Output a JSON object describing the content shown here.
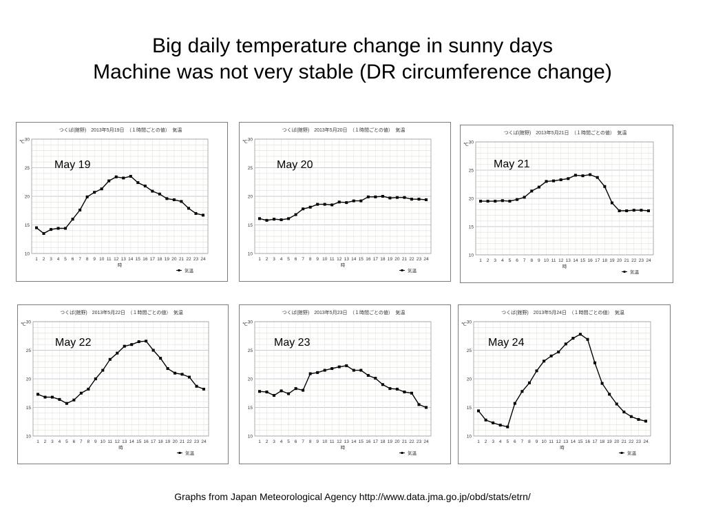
{
  "slide": {
    "title_line1": "Big daily temperature change in sunny days",
    "title_line2": "Machine was not very stable (DR circumference change)",
    "credits": "Graphs  from Japan Meteorological Agency   http://www.data.jma.go.jp/obd/stats/etrn/"
  },
  "chart_data": [
    {
      "type": "line",
      "header": "つくば(館野)　2013年5月19日　（１時間ごとの値）　気温",
      "date_label": "May 19",
      "y_unit": "℃",
      "xlabel": "時",
      "legend": "気温",
      "legend_position": "bottom-right",
      "grid": true,
      "ylim": [
        10,
        30
      ],
      "yticks": [
        10,
        15,
        20,
        25,
        30
      ],
      "x": [
        1,
        2,
        3,
        4,
        5,
        6,
        7,
        8,
        9,
        10,
        11,
        12,
        13,
        14,
        15,
        16,
        17,
        18,
        19,
        20,
        21,
        22,
        23,
        24
      ],
      "values": [
        14.5,
        13.5,
        14.2,
        14.4,
        14.4,
        16.0,
        17.6,
        19.9,
        20.7,
        21.3,
        22.7,
        23.4,
        23.2,
        23.5,
        22.4,
        21.8,
        20.9,
        20.4,
        19.6,
        19.4,
        19.1,
        17.9,
        17.0,
        16.7
      ],
      "color": "#000000"
    },
    {
      "type": "line",
      "header": "つくば(館野)　2013年5月20日　（１時間ごとの値）　気温",
      "date_label": "May 20",
      "y_unit": "℃",
      "xlabel": "時",
      "legend": "気温",
      "legend_position": "bottom-right",
      "grid": true,
      "ylim": [
        10,
        30
      ],
      "yticks": [
        10,
        15,
        20,
        25,
        30
      ],
      "x": [
        1,
        2,
        3,
        4,
        5,
        6,
        7,
        8,
        9,
        10,
        11,
        12,
        13,
        14,
        15,
        16,
        17,
        18,
        19,
        20,
        21,
        22,
        23,
        24
      ],
      "values": [
        16.1,
        15.8,
        16.0,
        15.9,
        16.1,
        16.8,
        17.8,
        18.1,
        18.6,
        18.6,
        18.5,
        19.0,
        18.9,
        19.2,
        19.2,
        19.9,
        19.9,
        20.0,
        19.7,
        19.8,
        19.8,
        19.5,
        19.5,
        19.4
      ],
      "color": "#000000"
    },
    {
      "type": "line",
      "header": "つくば(館野)　2013年5月21日　（１時間ごとの値）　気温",
      "date_label": "May 21",
      "y_unit": "℃",
      "xlabel": "時",
      "legend": "気温",
      "legend_position": "bottom-right",
      "grid": true,
      "ylim": [
        10,
        30
      ],
      "yticks": [
        10,
        15,
        20,
        25,
        30
      ],
      "x": [
        1,
        2,
        3,
        4,
        5,
        6,
        7,
        8,
        9,
        10,
        11,
        12,
        13,
        14,
        15,
        16,
        17,
        18,
        19,
        20,
        21,
        22,
        23,
        24
      ],
      "values": [
        19.5,
        19.5,
        19.5,
        19.6,
        19.5,
        19.8,
        20.2,
        21.3,
        22.0,
        23.0,
        23.1,
        23.3,
        23.5,
        24.1,
        24.0,
        24.2,
        23.7,
        22.1,
        19.2,
        17.8,
        17.8,
        17.9,
        17.9,
        17.8
      ],
      "color": "#000000"
    },
    {
      "type": "line",
      "header": "つくば(館野)　2013年5月22日　（１時間ごとの値）　気温",
      "date_label": "May 22",
      "y_unit": "℃",
      "xlabel": "時",
      "legend": "気温",
      "legend_position": "bottom-right",
      "grid": true,
      "ylim": [
        10,
        30
      ],
      "yticks": [
        10,
        15,
        20,
        25,
        30
      ],
      "x": [
        1,
        2,
        3,
        4,
        5,
        6,
        7,
        8,
        9,
        10,
        11,
        12,
        13,
        14,
        15,
        16,
        17,
        18,
        19,
        20,
        21,
        22,
        23,
        24
      ],
      "values": [
        17.3,
        16.8,
        16.8,
        16.4,
        15.7,
        16.3,
        17.5,
        18.2,
        20.0,
        21.5,
        23.4,
        24.5,
        25.7,
        26.0,
        26.5,
        26.6,
        25.0,
        23.6,
        21.8,
        21.0,
        20.8,
        20.3,
        18.7,
        18.2
      ],
      "color": "#000000"
    },
    {
      "type": "line",
      "header": "つくば(館野)　2013年5月23日　（１時間ごとの値）　気温",
      "date_label": "May 23",
      "y_unit": "℃",
      "xlabel": "時",
      "legend": "気温",
      "legend_position": "bottom-right",
      "grid": true,
      "ylim": [
        10,
        30
      ],
      "yticks": [
        10,
        15,
        20,
        25,
        30
      ],
      "x": [
        1,
        2,
        3,
        4,
        5,
        6,
        7,
        8,
        9,
        10,
        11,
        12,
        13,
        14,
        15,
        16,
        17,
        18,
        19,
        20,
        21,
        22,
        23,
        24
      ],
      "values": [
        17.8,
        17.7,
        17.1,
        17.9,
        17.4,
        18.3,
        18.0,
        20.9,
        21.1,
        21.5,
        21.8,
        22.1,
        22.3,
        21.5,
        21.5,
        20.6,
        20.1,
        19.0,
        18.3,
        18.2,
        17.7,
        17.5,
        15.5,
        15.0
      ],
      "color": "#000000"
    },
    {
      "type": "line",
      "header": "つくば(館野)　2013年5月24日　（１時間ごとの値）　気温",
      "date_label": "May 24",
      "y_unit": "℃",
      "xlabel": "時",
      "legend": "気温",
      "legend_position": "bottom-right",
      "grid": true,
      "ylim": [
        10,
        30
      ],
      "yticks": [
        10,
        15,
        20,
        25,
        30
      ],
      "x": [
        1,
        2,
        3,
        4,
        5,
        6,
        7,
        8,
        9,
        10,
        11,
        12,
        13,
        14,
        15,
        16,
        17,
        18,
        19,
        20,
        21,
        22,
        23,
        24
      ],
      "values": [
        14.4,
        12.8,
        12.3,
        11.9,
        11.6,
        15.7,
        17.8,
        19.3,
        21.4,
        23.1,
        24.0,
        24.7,
        26.1,
        27.1,
        27.8,
        26.9,
        22.8,
        19.2,
        17.3,
        15.6,
        14.2,
        13.4,
        12.9,
        12.6
      ],
      "color": "#000000"
    }
  ]
}
